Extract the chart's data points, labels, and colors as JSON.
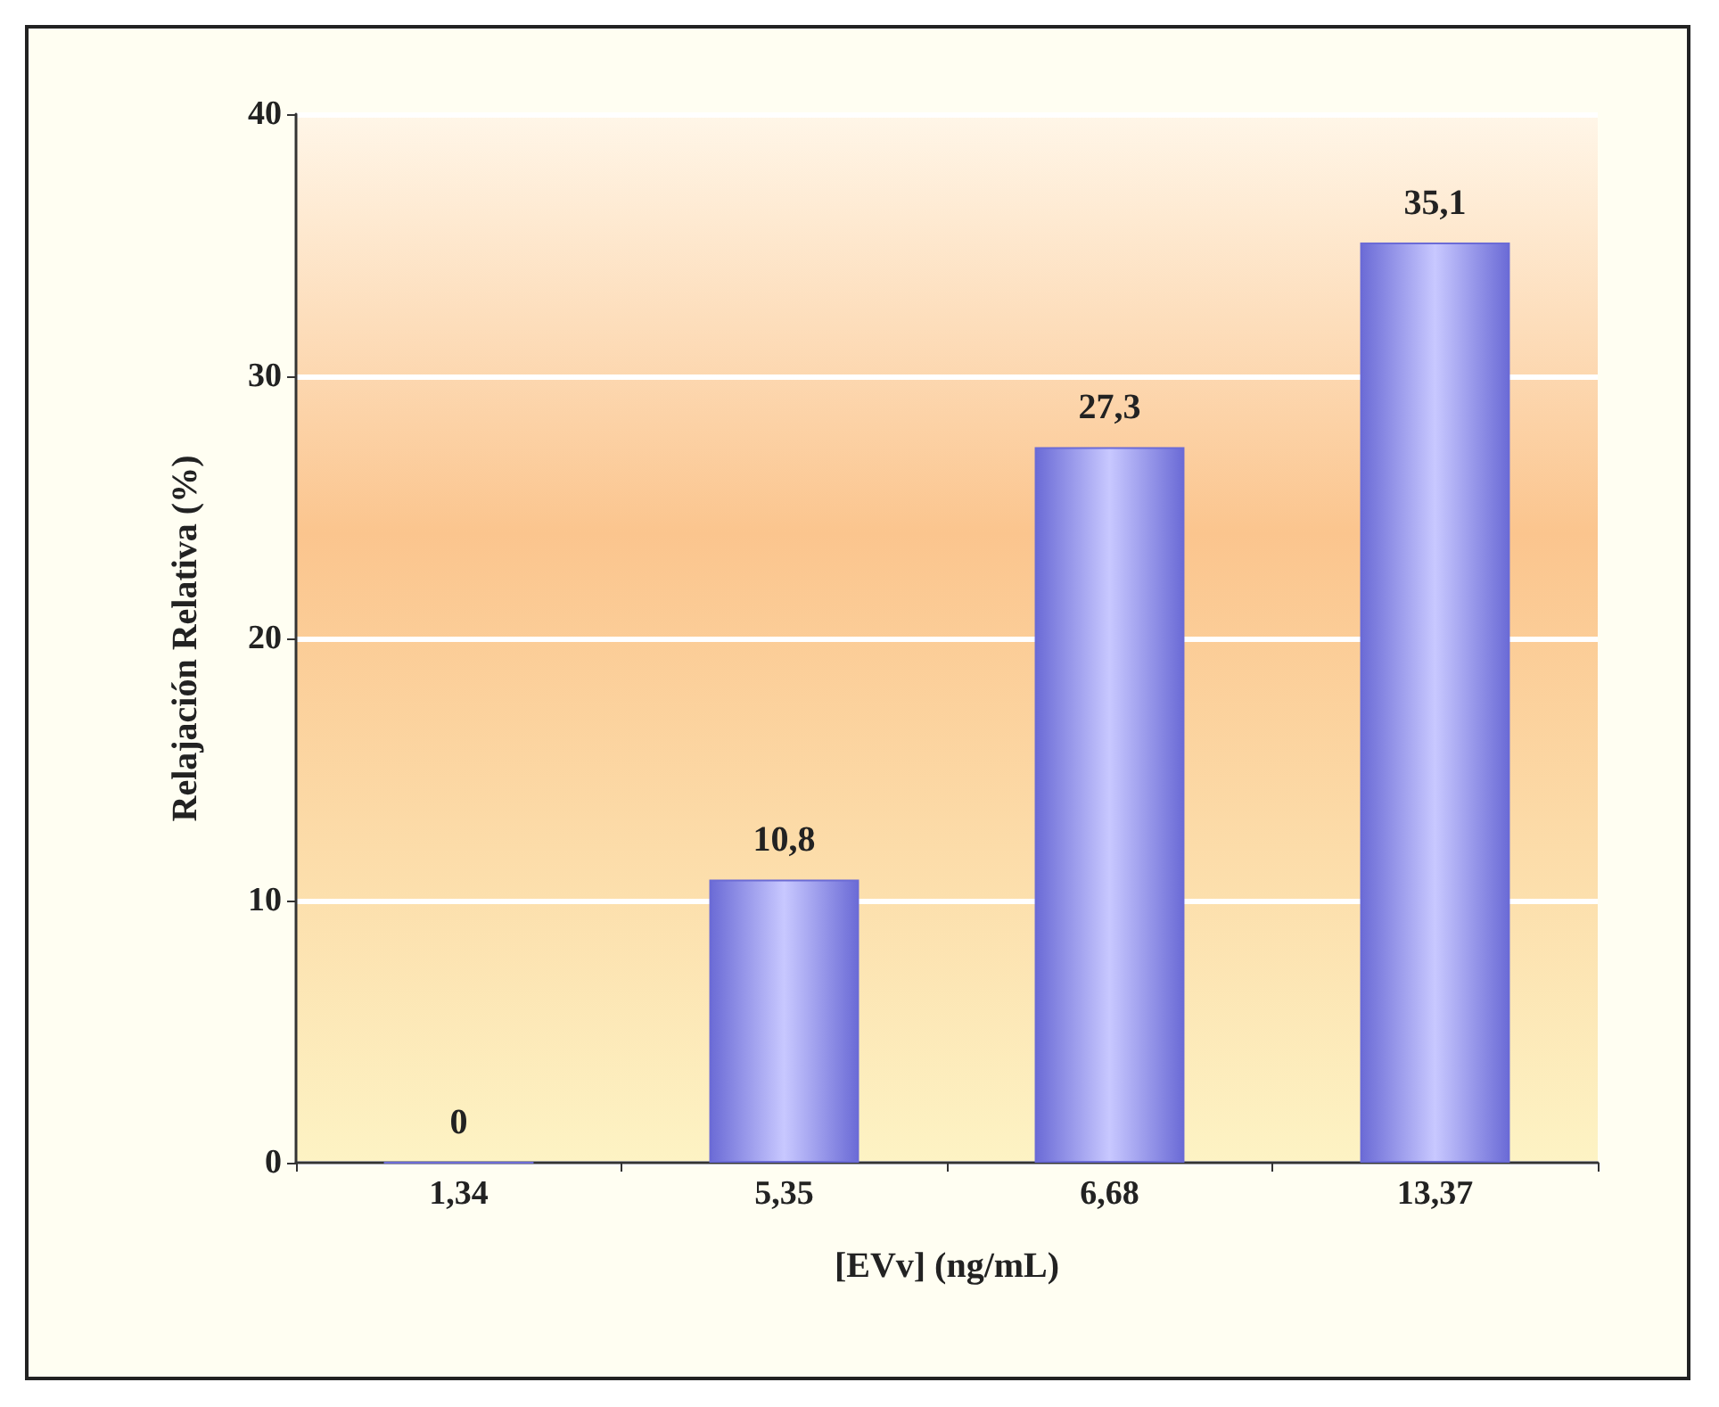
{
  "chart_data": {
    "type": "bar",
    "xlabel": "[EVv] (ng/mL)",
    "ylabel": "Relajación Relativa (%)",
    "categories": [
      "1,34",
      "5,35",
      "6,68",
      "13,37"
    ],
    "values": [
      0,
      10.8,
      27.3,
      35.1
    ],
    "value_labels": [
      "0",
      "10,8",
      "27,3",
      "35,1"
    ],
    "color": "#6b6bd6",
    "ylim": [
      0,
      40
    ],
    "yticks": [
      0,
      10,
      20,
      30,
      40
    ],
    "grid": "y"
  }
}
